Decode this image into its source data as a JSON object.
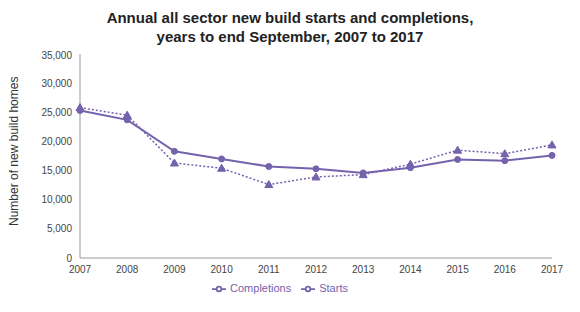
{
  "chart_data": {
    "type": "line",
    "title": "Annual all sector new build starts and completions, years to end September, 2007 to 2017",
    "y_label": "Number of new build homes",
    "categories": [
      "2007",
      "2008",
      "2009",
      "2010",
      "2011",
      "2012",
      "2013",
      "2014",
      "2015",
      "2016",
      "2017"
    ],
    "series": [
      {
        "name": "Starts",
        "color": "#7462ad",
        "marker": "triangle",
        "line_style": "dotted",
        "values": [
          25800,
          24500,
          16300,
          15400,
          12600,
          13900,
          14300,
          16100,
          18500,
          17900,
          19400
        ]
      },
      {
        "name": "Completions",
        "color": "#7462ad",
        "marker": "circle",
        "line_style": "solid",
        "values": [
          25300,
          23700,
          18300,
          17000,
          15700,
          15300,
          14600,
          15500,
          16900,
          16700,
          17600
        ]
      }
    ],
    "ylim": [
      0,
      35000
    ],
    "yticks": [
      0,
      {
        "value": 5000,
        "label": "5,000"
      },
      {
        "value": 10000,
        "label": "10,000"
      },
      {
        "value": 15000,
        "label": "15,000"
      },
      {
        "value": 20000,
        "label": "20,000"
      },
      {
        "value": 25000,
        "label": "25,000"
      },
      {
        "value": 30000,
        "label": "30,000"
      },
      {
        "value": 35000,
        "label": "35,000"
      }
    ],
    "grid": false,
    "legend": "bottom"
  }
}
